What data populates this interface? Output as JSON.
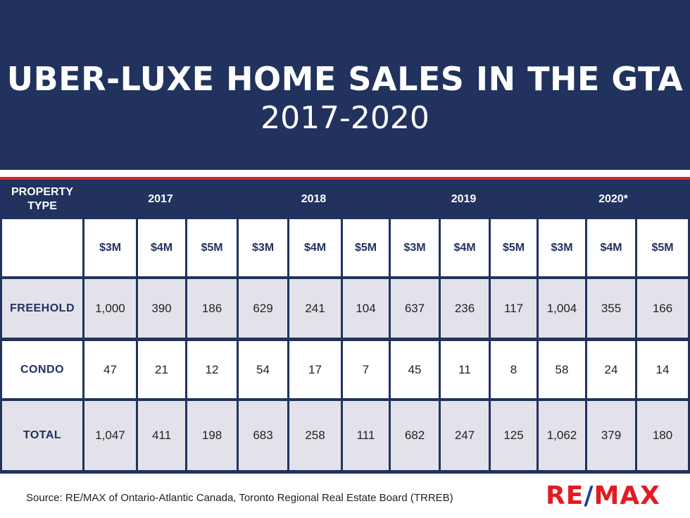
{
  "title": "UBER-LUXE HOME SALES IN THE GTA",
  "subtitle": "2017-2020",
  "source": "Source: RE/MAX of Ontario-Atlantic Canada, Toronto Regional Real Estate Board (TRREB)",
  "logo": {
    "left": "RE",
    "slash": "/",
    "right": "MAX"
  },
  "colors": {
    "navy": "#21325e",
    "red": "#d5272e",
    "row_shade": "#e3e2ea",
    "logo_red": "#e11b22",
    "logo_blue": "#1c3f94"
  },
  "chart_data": {
    "type": "table",
    "header_label": "PROPERTY TYPE",
    "years": [
      "2017",
      "2018",
      "2019",
      "2020*"
    ],
    "price_tiers": [
      "$3M",
      "$4M",
      "$5M"
    ],
    "rows": [
      {
        "label": "FREEHOLD",
        "values": [
          "1,000",
          "390",
          "186",
          "629",
          "241",
          "104",
          "637",
          "236",
          "117",
          "1,004",
          "355",
          "166"
        ]
      },
      {
        "label": "CONDO",
        "values": [
          "47",
          "21",
          "12",
          "54",
          "17",
          "7",
          "45",
          "11",
          "8",
          "58",
          "24",
          "14"
        ]
      },
      {
        "label": "TOTAL",
        "values": [
          "1,047",
          "411",
          "198",
          "683",
          "258",
          "111",
          "682",
          "247",
          "125",
          "1,062",
          "379",
          "180"
        ]
      }
    ]
  }
}
